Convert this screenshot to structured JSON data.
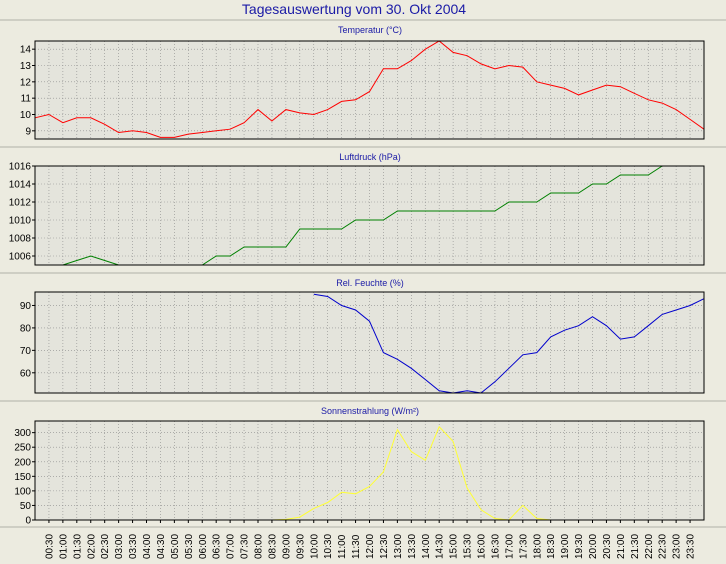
{
  "title": "Tagesauswertung vom 30. Okt 2004",
  "time_labels": [
    "00:30",
    "01:00",
    "01:30",
    "02:00",
    "02:30",
    "03:00",
    "03:30",
    "04:00",
    "04:30",
    "05:00",
    "05:30",
    "06:00",
    "06:30",
    "07:00",
    "07:30",
    "08:00",
    "08:30",
    "09:00",
    "09:30",
    "10:00",
    "10:30",
    "11:00",
    "11:30",
    "12:00",
    "12:30",
    "13:00",
    "13:30",
    "14:00",
    "14:30",
    "15:00",
    "15:30",
    "16:00",
    "16:30",
    "17:00",
    "17:30",
    "18:00",
    "18:30",
    "19:00",
    "19:30",
    "20:00",
    "20:30",
    "21:00",
    "21:30",
    "22:00",
    "22:30",
    "23:00",
    "23:30"
  ],
  "colors": {
    "background": "#ecebe0",
    "title": "#1a1aa6",
    "plot_background": "#e4e4dc",
    "grid": "#8a8a8a",
    "temperature": "#ff0000",
    "pressure": "#008000",
    "humidity": "#0000cc",
    "radiation": "#ffff33"
  },
  "chart_data": [
    {
      "type": "line",
      "title": "Temperatur (°C)",
      "ylim": [
        8.5,
        14.5
      ],
      "yticks": [
        9,
        10,
        11,
        12,
        13,
        14
      ],
      "grid": true,
      "series": [
        {
          "values": [
            9.8,
            10.0,
            9.5,
            9.8,
            9.8,
            9.4,
            8.9,
            9.0,
            8.9,
            8.6,
            8.6,
            8.8,
            8.9,
            9.0,
            9.1,
            9.5,
            10.3,
            9.6,
            10.3,
            10.1,
            10.0,
            10.3,
            10.8,
            10.9,
            11.4,
            12.8,
            12.8,
            13.3,
            14.0,
            14.5,
            13.8,
            13.6,
            13.1,
            12.8,
            13.0,
            12.9,
            12.0,
            11.8,
            11.6,
            11.2,
            11.5,
            11.8,
            11.7,
            11.3,
            10.9,
            10.7,
            10.3,
            9.7,
            9.1
          ]
        }
      ]
    },
    {
      "type": "line",
      "title": "Luftdruck (hPa)",
      "ylim": [
        1005,
        1016
      ],
      "yticks": [
        1006,
        1008,
        1010,
        1012,
        1014,
        1016
      ],
      "grid": true,
      "series": [
        {
          "values": [
            1005,
            1005,
            1005,
            1005.5,
            1006,
            1005.5,
            1005,
            1005,
            1005,
            1005,
            1005,
            1005,
            1005,
            1006,
            1006,
            1007,
            1007,
            1007,
            1007,
            1009,
            1009,
            1009,
            1009,
            1010,
            1010,
            1010,
            1011,
            1011,
            1011,
            1011,
            1011,
            1011,
            1011,
            1011,
            1012,
            1012,
            1012,
            1013,
            1013,
            1013,
            1014,
            1014,
            1015,
            1015,
            1015,
            1016
          ]
        }
      ]
    },
    {
      "type": "line",
      "title": "Rel. Feuchte (%)",
      "ylim": [
        51,
        96
      ],
      "yticks": [
        60,
        70,
        80,
        90
      ],
      "grid": true,
      "series": [
        {
          "x": [
            20,
            21,
            22,
            23,
            24,
            25,
            26,
            27,
            28,
            29,
            30,
            31,
            32,
            33,
            34,
            35,
            36,
            37,
            38,
            39,
            40,
            41,
            42,
            43,
            44,
            45,
            46,
            47,
            48
          ],
          "values": [
            95,
            94,
            90,
            88,
            83,
            69,
            66,
            62,
            57,
            52,
            51,
            52,
            51,
            56,
            62,
            68,
            69,
            76,
            79,
            81,
            85,
            81,
            75,
            76,
            81,
            86,
            88,
            90,
            93
          ]
        }
      ]
    },
    {
      "type": "line",
      "title": "Sonnenstrahlung (W/m²)",
      "ylim": [
        0,
        340
      ],
      "yticks": [
        0,
        50,
        100,
        150,
        200,
        250,
        300
      ],
      "grid": true,
      "series": [
        {
          "x": [
            16,
            17,
            18,
            19,
            20,
            21,
            22,
            23,
            24,
            25,
            26,
            27,
            28,
            29,
            30,
            31,
            32,
            33,
            34,
            35,
            36,
            37
          ],
          "values": [
            0,
            0,
            2,
            10,
            40,
            60,
            95,
            90,
            115,
            165,
            310,
            235,
            205,
            320,
            270,
            110,
            35,
            5,
            0,
            50,
            5,
            0
          ]
        }
      ]
    }
  ]
}
